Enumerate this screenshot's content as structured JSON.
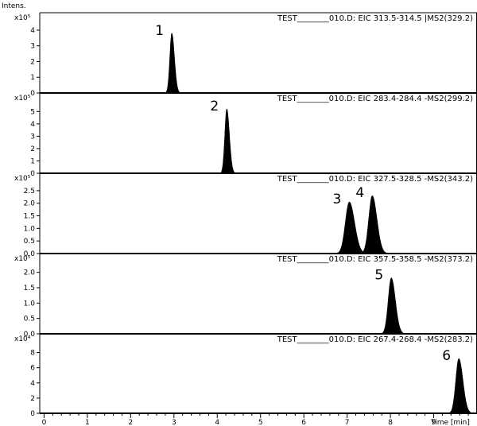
{
  "chart_data": {
    "type": "line",
    "y_axis_title": "Intens.",
    "x_axis_title": "Time [min]",
    "x_range": [
      -0.1,
      10.0
    ],
    "x_ticks": [
      0,
      1,
      2,
      3,
      4,
      5,
      6,
      7,
      8,
      9
    ],
    "grid": false,
    "fill": "#000000",
    "panels": [
      {
        "header": "TEST________010.D: EIC 313.5-314.5 |MS2(329.2)",
        "exponent_label": "x10⁵",
        "ymax": 4.4,
        "y_ticks": [
          0,
          1,
          2,
          3,
          4
        ],
        "peaks": [
          {
            "label": "1",
            "center": 2.95,
            "height": 3.8,
            "width": 0.045
          }
        ]
      },
      {
        "header": "TEST________010.D: EIC 283.4-284.4 -MS2(299.2)",
        "exponent_label": "x10⁵",
        "ymax": 5.6,
        "y_ticks": [
          0,
          1,
          2,
          3,
          4,
          5
        ],
        "peaks": [
          {
            "label": "2",
            "center": 4.22,
            "height": 5.2,
            "width": 0.045
          }
        ]
      },
      {
        "header": "TEST________010.D: EIC 327.5-328.5 -MS2(343.2)",
        "exponent_label": "x10⁵",
        "ymax": 2.75,
        "y_ticks": [
          0.0,
          0.5,
          1.0,
          1.5,
          2.0,
          2.5
        ],
        "y_tick_labels": [
          "0.0",
          "0.5",
          "1.0",
          "1.5",
          "2.0",
          "2.5"
        ],
        "peaks": [
          {
            "label": "3",
            "center": 7.05,
            "height": 2.05,
            "width": 0.09
          },
          {
            "label": "4",
            "center": 7.58,
            "height": 2.3,
            "width": 0.08
          }
        ]
      },
      {
        "header": "TEST________010.D: EIC 357.5-358.5 -MS2(373.2)",
        "exponent_label": "x10⁵",
        "ymax": 2.25,
        "y_ticks": [
          0.0,
          0.5,
          1.0,
          1.5,
          2.0
        ],
        "y_tick_labels": [
          "0.0",
          "0.5",
          "1.0",
          "1.5",
          "2.0"
        ],
        "peaks": [
          {
            "label": "5",
            "center": 8.02,
            "height": 1.82,
            "width": 0.07
          }
        ]
      },
      {
        "header": "TEST________010.D: EIC 267.4-268.4 -MS2(283.2)",
        "exponent_label": "x10⁴",
        "ymax": 9.0,
        "y_ticks": [
          0,
          2,
          4,
          6,
          8
        ],
        "peaks": [
          {
            "label": "6",
            "center": 9.58,
            "height": 7.2,
            "width": 0.07
          }
        ]
      }
    ]
  }
}
